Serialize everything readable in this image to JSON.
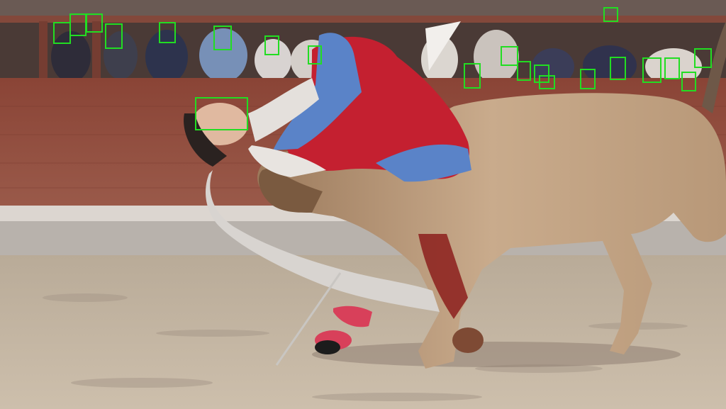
{
  "scene": {
    "subject": "bullfight",
    "box_color": "#22dd22",
    "colors": {
      "arena_sand": "#c7b8a5",
      "barrier_wall": "#8e4a3c",
      "cape_red": "#c42030",
      "cape_blue": "#5a83c8",
      "bull_tan": "#c3a384",
      "stocking_pink": "#d8405a"
    }
  },
  "detections": {
    "label": "face",
    "count": 22
  }
}
